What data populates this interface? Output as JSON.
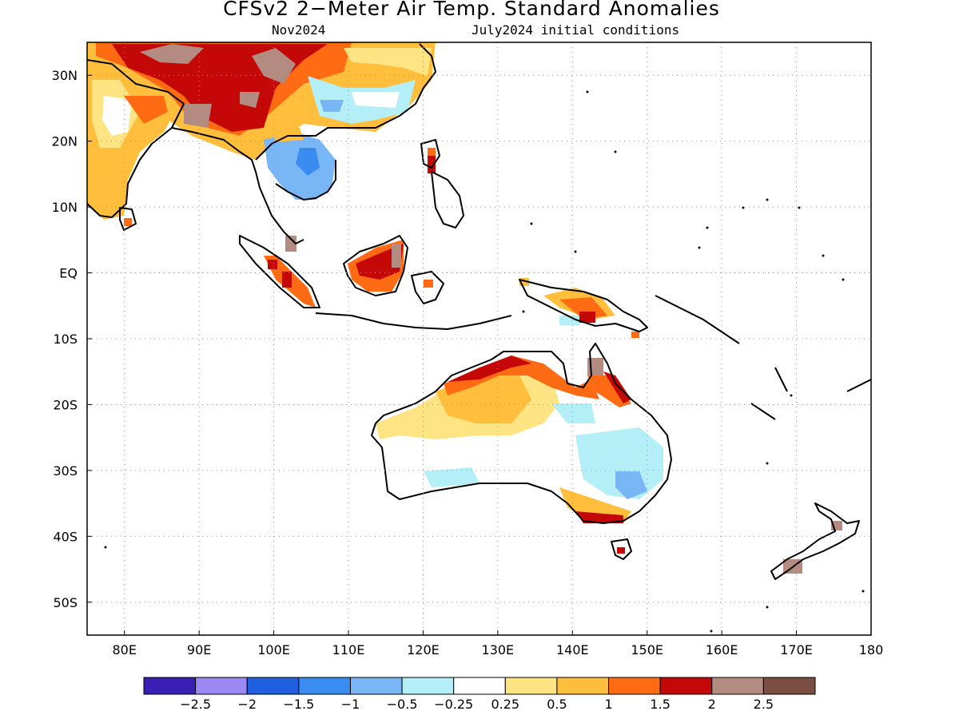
{
  "title": "CFSv2 2−Meter Air Temp. Standard Anomalies",
  "subtitle_left": "Nov2024",
  "subtitle_right": "July2024 initial conditions",
  "map": {
    "lon_range": [
      75,
      180
    ],
    "lat_range": [
      -55,
      35
    ],
    "lat_labels": [
      "30N",
      "20N",
      "10N",
      "EQ",
      "10S",
      "20S",
      "30S",
      "40S",
      "50S"
    ],
    "lon_labels": [
      "80E",
      "90E",
      "100E",
      "110E",
      "120E",
      "130E",
      "140E",
      "150E",
      "160E",
      "170E",
      "180"
    ],
    "gridlines": "dotted"
  },
  "colorbar": {
    "colors": [
      "#3a1fb4",
      "#9c89f4",
      "#1f5fe0",
      "#3a8cf0",
      "#79b6f5",
      "#b4eef7",
      "#ffffff",
      "#ffe484",
      "#ffbe3b",
      "#ff6b13",
      "#c40808",
      "#b38b80",
      "#7a4f42"
    ],
    "labels": [
      "−2.5",
      "−2",
      "−1.5",
      "−1",
      "−0.5",
      "−0.25",
      "0.25",
      "0.5",
      "1",
      "1.5",
      "2",
      "2.5"
    ]
  }
}
